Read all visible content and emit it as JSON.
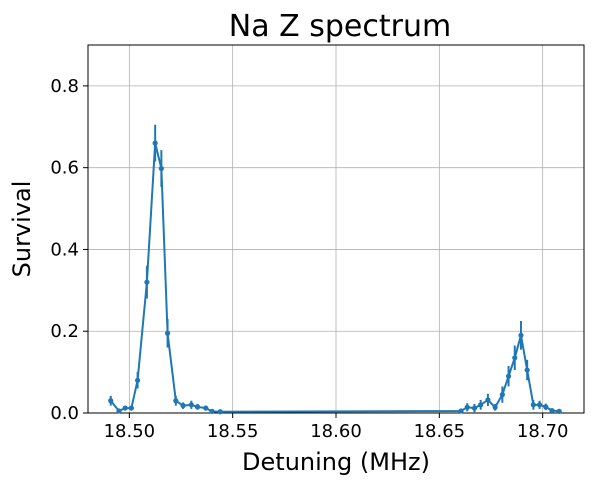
{
  "chart_data": {
    "type": "line",
    "title": "Na Z spectrum",
    "xlabel": "Detuning (MHz)",
    "ylabel": "Survival",
    "xlim": [
      18.48,
      18.72
    ],
    "ylim": [
      0.0,
      0.9
    ],
    "xticks": [
      "18.50",
      "18.55",
      "18.60",
      "18.65",
      "18.70"
    ],
    "yticks": [
      "0.0",
      "0.2",
      "0.4",
      "0.6",
      "0.8"
    ],
    "grid": true,
    "color": "#1f77b4",
    "series": [
      {
        "marker": "circle",
        "errorbars": true,
        "points": [
          {
            "x": 18.491,
            "y": 0.03,
            "err": 0.012
          },
          {
            "x": 18.495,
            "y": 0.005,
            "err": 0.004
          },
          {
            "x": 18.498,
            "y": 0.012,
            "err": 0.005
          },
          {
            "x": 18.501,
            "y": 0.012,
            "err": 0.005
          },
          {
            "x": 18.504,
            "y": 0.08,
            "err": 0.02
          },
          {
            "x": 18.5085,
            "y": 0.32,
            "err": 0.04
          },
          {
            "x": 18.5125,
            "y": 0.66,
            "err": 0.045
          },
          {
            "x": 18.5155,
            "y": 0.598,
            "err": 0.045
          },
          {
            "x": 18.5185,
            "y": 0.195,
            "err": 0.035
          },
          {
            "x": 18.5225,
            "y": 0.03,
            "err": 0.012
          },
          {
            "x": 18.526,
            "y": 0.018,
            "err": 0.008
          },
          {
            "x": 18.53,
            "y": 0.02,
            "err": 0.01
          },
          {
            "x": 18.533,
            "y": 0.015,
            "err": 0.007
          },
          {
            "x": 18.537,
            "y": 0.012,
            "err": 0.006
          },
          {
            "x": 18.54,
            "y": 0.004,
            "err": 0.004
          },
          {
            "x": 18.544,
            "y": 0.003,
            "err": 0.003
          },
          {
            "x": 18.6605,
            "y": 0.005,
            "err": 0.005
          },
          {
            "x": 18.6635,
            "y": 0.014,
            "err": 0.01
          },
          {
            "x": 18.667,
            "y": 0.012,
            "err": 0.01
          },
          {
            "x": 18.67,
            "y": 0.02,
            "err": 0.012
          },
          {
            "x": 18.6735,
            "y": 0.032,
            "err": 0.015
          },
          {
            "x": 18.677,
            "y": 0.014,
            "err": 0.008
          },
          {
            "x": 18.6805,
            "y": 0.045,
            "err": 0.02
          },
          {
            "x": 18.6835,
            "y": 0.09,
            "err": 0.025
          },
          {
            "x": 18.6865,
            "y": 0.135,
            "err": 0.03
          },
          {
            "x": 18.6895,
            "y": 0.19,
            "err": 0.035
          },
          {
            "x": 18.6925,
            "y": 0.105,
            "err": 0.025
          },
          {
            "x": 18.6955,
            "y": 0.02,
            "err": 0.012
          },
          {
            "x": 18.6985,
            "y": 0.02,
            "err": 0.01
          },
          {
            "x": 18.7015,
            "y": 0.015,
            "err": 0.008
          },
          {
            "x": 18.7045,
            "y": 0.006,
            "err": 0.005
          },
          {
            "x": 18.708,
            "y": 0.004,
            "err": 0.003
          }
        ]
      }
    ]
  }
}
